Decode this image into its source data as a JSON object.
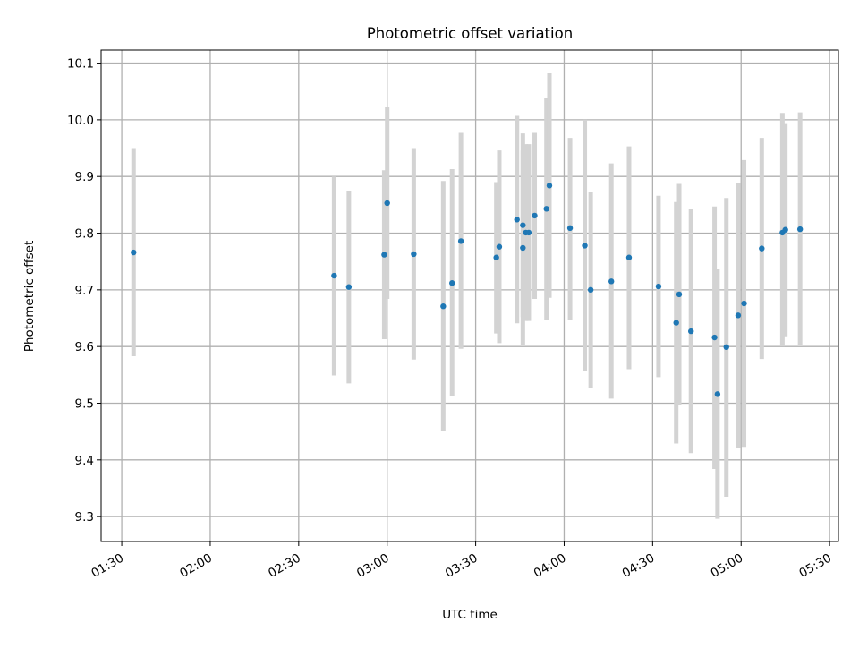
{
  "chart_data": {
    "type": "scatter",
    "title": "Photometric offset variation",
    "xlabel": "UTC time",
    "ylabel": "Photometric offset",
    "xlim": [
      "01:23",
      "05:33"
    ],
    "ylim": [
      9.256,
      10.123
    ],
    "x_ticks": [
      "01:30",
      "02:00",
      "02:30",
      "03:00",
      "03:30",
      "04:00",
      "04:30",
      "05:00",
      "05:30"
    ],
    "y_ticks": [
      "9.3",
      "9.4",
      "9.5",
      "9.6",
      "9.7",
      "9.8",
      "9.9",
      "10.0",
      "10.1"
    ],
    "grid": true,
    "colors": {
      "point": "#1f77b4",
      "errorbar": "#d3d3d3",
      "grid": "#b0b0b0"
    },
    "points": [
      {
        "x": "01:34",
        "y": 9.766,
        "lo": 9.583,
        "hi": 9.95
      },
      {
        "x": "02:42",
        "y": 9.725,
        "lo": 9.549,
        "hi": 9.9
      },
      {
        "x": "02:47",
        "y": 9.705,
        "lo": 9.535,
        "hi": 9.875
      },
      {
        "x": "02:59",
        "y": 9.762,
        "lo": 9.613,
        "hi": 9.911
      },
      {
        "x": "03:00",
        "y": 9.853,
        "lo": 9.684,
        "hi": 10.022
      },
      {
        "x": "03:09",
        "y": 9.763,
        "lo": 9.577,
        "hi": 9.95
      },
      {
        "x": "03:19",
        "y": 9.671,
        "lo": 9.451,
        "hi": 9.892
      },
      {
        "x": "03:22",
        "y": 9.712,
        "lo": 9.513,
        "hi": 9.913
      },
      {
        "x": "03:25",
        "y": 9.786,
        "lo": 9.596,
        "hi": 9.977
      },
      {
        "x": "03:37",
        "y": 9.757,
        "lo": 9.623,
        "hi": 9.89
      },
      {
        "x": "03:38",
        "y": 9.776,
        "lo": 9.606,
        "hi": 9.946
      },
      {
        "x": "03:44",
        "y": 9.824,
        "lo": 9.641,
        "hi": 10.007
      },
      {
        "x": "03:46",
        "y": 9.774,
        "lo": 9.602,
        "hi": 9.946
      },
      {
        "x": "03:46",
        "y": 9.814,
        "lo": 9.652,
        "hi": 9.976
      },
      {
        "x": "03:47",
        "y": 9.801,
        "lo": 9.645,
        "hi": 9.957
      },
      {
        "x": "03:48",
        "y": 9.801,
        "lo": 9.645,
        "hi": 9.957
      },
      {
        "x": "03:50",
        "y": 9.831,
        "lo": 9.684,
        "hi": 9.977
      },
      {
        "x": "03:54",
        "y": 9.843,
        "lo": 9.646,
        "hi": 10.039
      },
      {
        "x": "03:55",
        "y": 9.884,
        "lo": 9.686,
        "hi": 10.082
      },
      {
        "x": "04:02",
        "y": 9.809,
        "lo": 9.647,
        "hi": 9.968
      },
      {
        "x": "04:07",
        "y": 9.778,
        "lo": 9.556,
        "hi": 10.0
      },
      {
        "x": "04:09",
        "y": 9.7,
        "lo": 9.526,
        "hi": 9.873
      },
      {
        "x": "04:16",
        "y": 9.715,
        "lo": 9.508,
        "hi": 9.923
      },
      {
        "x": "04:22",
        "y": 9.757,
        "lo": 9.56,
        "hi": 9.953
      },
      {
        "x": "04:32",
        "y": 9.706,
        "lo": 9.546,
        "hi": 9.866
      },
      {
        "x": "04:38",
        "y": 9.642,
        "lo": 9.429,
        "hi": 9.855
      },
      {
        "x": "04:39",
        "y": 9.692,
        "lo": 9.497,
        "hi": 9.887
      },
      {
        "x": "04:43",
        "y": 9.627,
        "lo": 9.412,
        "hi": 9.843
      },
      {
        "x": "04:51",
        "y": 9.616,
        "lo": 9.384,
        "hi": 9.847
      },
      {
        "x": "04:52",
        "y": 9.516,
        "lo": 9.296,
        "hi": 9.736
      },
      {
        "x": "04:55",
        "y": 9.599,
        "lo": 9.335,
        "hi": 9.862
      },
      {
        "x": "04:59",
        "y": 9.655,
        "lo": 9.421,
        "hi": 9.888
      },
      {
        "x": "05:01",
        "y": 9.676,
        "lo": 9.423,
        "hi": 9.929
      },
      {
        "x": "05:07",
        "y": 9.773,
        "lo": 9.578,
        "hi": 9.968
      },
      {
        "x": "05:14",
        "y": 9.801,
        "lo": 9.6,
        "hi": 10.012
      },
      {
        "x": "05:15",
        "y": 9.806,
        "lo": 9.618,
        "hi": 9.994
      },
      {
        "x": "05:20",
        "y": 9.807,
        "lo": 9.602,
        "hi": 10.013
      }
    ]
  }
}
